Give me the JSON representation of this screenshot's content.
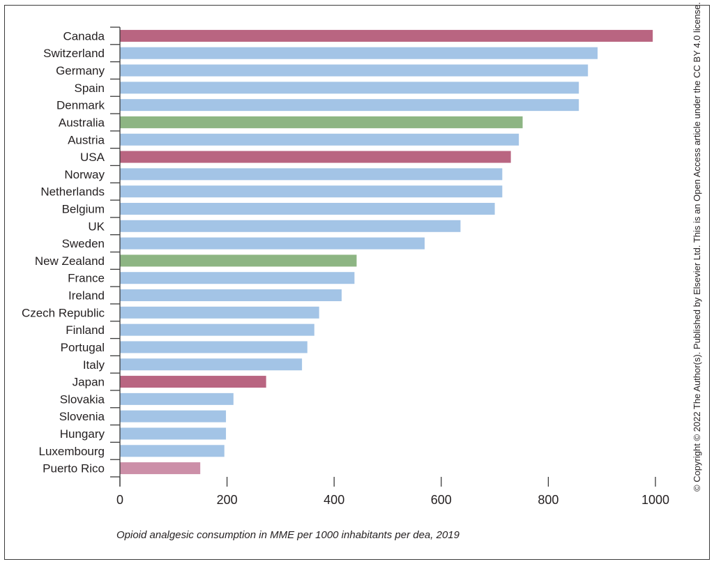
{
  "chart_data": {
    "type": "bar",
    "orientation": "horizontal",
    "categories": [
      "Canada",
      "Switzerland",
      "Germany",
      "Spain",
      "Denmark",
      "Australia",
      "Austria",
      "USA",
      "Norway",
      "Netherlands",
      "Belgium",
      "UK",
      "Sweden",
      "New Zealand",
      "France",
      "Ireland",
      "Czech Republic",
      "Finland",
      "Portugal",
      "Italy",
      "Japan",
      "Slovakia",
      "Slovenia",
      "Hungary",
      "Luxembourg",
      "Puerto Rico"
    ],
    "values": [
      995,
      892,
      874,
      857,
      857,
      752,
      745,
      730,
      714,
      714,
      700,
      636,
      569,
      442,
      438,
      414,
      372,
      363,
      350,
      340,
      273,
      212,
      198,
      198,
      195,
      150
    ],
    "bar_colors": [
      "#b96581",
      "#a3c4e6",
      "#a3c4e6",
      "#a3c4e6",
      "#a3c4e6",
      "#8db583",
      "#a3c4e6",
      "#b96581",
      "#a3c4e6",
      "#a3c4e6",
      "#a3c4e6",
      "#a3c4e6",
      "#a3c4e6",
      "#8db583",
      "#a3c4e6",
      "#a3c4e6",
      "#a3c4e6",
      "#a3c4e6",
      "#a3c4e6",
      "#a3c4e6",
      "#b96581",
      "#a3c4e6",
      "#a3c4e6",
      "#a3c4e6",
      "#a3c4e6",
      "#cc8fa8"
    ],
    "xlim": [
      0,
      1000
    ],
    "xticks": [
      0,
      200,
      400,
      600,
      800,
      1000
    ],
    "xlabel": "Opioid analgesic consumption in MME per 1000 inhabitants per dea, 2019",
    "ylabel": "",
    "title": "",
    "grid": false
  },
  "copyright": "© Copyright © 2022 The Author(s). Published by Elsevier Ltd. This is an Open Access article under the CC BY 4.0 license."
}
